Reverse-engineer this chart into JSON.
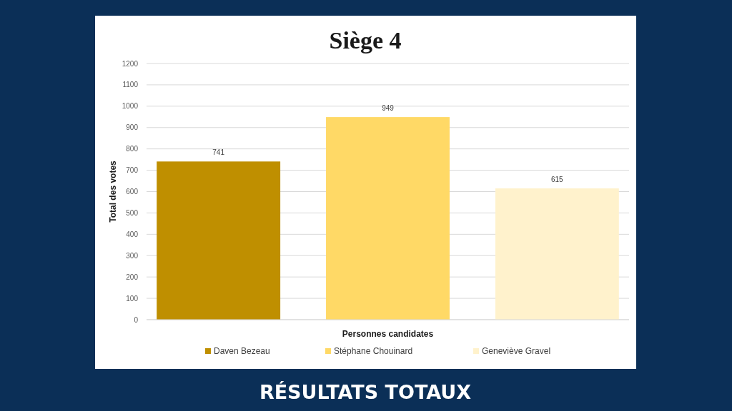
{
  "chart_data": {
    "type": "bar",
    "title": "Siège 4",
    "xlabel": "Personnes candidates",
    "ylabel": "Total des votes",
    "annotations": [
      "RÉSULTATS TOTAUX"
    ],
    "categories": [
      null,
      null,
      null
    ],
    "series": [
      {
        "name": "Daven Bezeau",
        "color": "#bf8f00",
        "values": [
          741,
          null,
          null
        ]
      },
      {
        "name": "Stéphane Chouinard",
        "color": "#ffd966",
        "values": [
          null,
          949,
          null
        ]
      },
      {
        "name": "Geneviève Gravel",
        "color": "#fff2cc",
        "values": [
          null,
          null,
          615
        ]
      }
    ],
    "ylim": [
      0,
      1200
    ],
    "yticks": [
      0,
      100,
      200,
      300,
      400,
      500,
      600,
      700,
      800,
      900,
      1000,
      1100,
      1200
    ],
    "grid": "y",
    "legend": "bottom",
    "data_labels": true
  }
}
